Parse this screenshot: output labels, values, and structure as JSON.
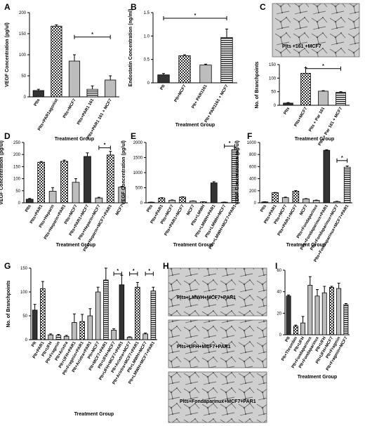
{
  "figure": {
    "panel_letters": [
      "A",
      "B",
      "C",
      "D",
      "E",
      "F",
      "G",
      "H",
      "I"
    ],
    "micrographs": [
      {
        "panel": "C",
        "label": "Plts +161 +MCF7"
      },
      {
        "panel": "H",
        "label": "Plts+LMWH+MCF7+PAR1"
      },
      {
        "panel": "H",
        "label": "Plts+UFH+MCF7+PAR1"
      },
      {
        "panel": "H",
        "label": "Plts+Fondaparinux+MCF7+PAR1"
      }
    ]
  },
  "chart_data": [
    {
      "panel": "A",
      "type": "bar",
      "ylabel": "VEGF Concentration (pg/ul)",
      "xlabel": "Treatment Group",
      "ylim": [
        0,
        200
      ],
      "yticks": [
        0,
        50,
        100,
        150,
        200
      ],
      "categories": [
        "Plts",
        "Plts+PAR1agonist",
        "Plts+MCF7",
        "Plts+PAR1 161",
        "Plts+PAR1 161 + MCF7"
      ],
      "values": [
        15,
        168,
        85,
        18,
        40
      ],
      "errors": [
        3,
        3,
        15,
        8,
        10
      ],
      "patterns": [
        "dark",
        "check",
        "gray",
        "hatch",
        "gray"
      ],
      "significance": [
        {
          "from": 2,
          "to": 4,
          "label": "*",
          "y": 142
        }
      ]
    },
    {
      "panel": "B",
      "type": "bar",
      "ylabel": "Endostatin Concentration (ng/ml)",
      "xlabel": "Treatment Group",
      "ylim": [
        0,
        1.5
      ],
      "yticks": [
        0,
        0.5,
        1.0,
        1.5
      ],
      "ytick_labels": [
        "0",
        "0.5",
        "1.0",
        "1.5"
      ],
      "categories": [
        "Plt",
        "Plt+MCF7",
        "Plt+ PAR1161",
        "Plt+ PAR1161 + MCF7"
      ],
      "values": [
        0.17,
        0.58,
        0.38,
        0.97
      ],
      "errors": [
        0.03,
        0.02,
        0.02,
        0.18
      ],
      "patterns": [
        "dark",
        "check",
        "gray",
        "hatch"
      ],
      "significance": [
        {
          "from": 0,
          "to": 3,
          "label": "*",
          "y": 1.38
        }
      ]
    },
    {
      "panel": "C",
      "type": "bar",
      "ylabel": "No. of Branchpoints",
      "xlabel": "Treatment Group",
      "ylim": [
        0,
        150
      ],
      "yticks": [
        0,
        50,
        100,
        150
      ],
      "categories": [
        "Plts",
        "Plts+MCF7",
        "Plts + Par 161",
        "Plts + Par 161 + MCF7"
      ],
      "values": [
        8,
        118,
        52,
        48
      ],
      "errors": [
        2,
        20,
        2,
        2
      ],
      "patterns": [
        "dark",
        "check",
        "gray",
        "hatch"
      ],
      "significance": [
        {
          "from": 1,
          "to": 3,
          "label": "*",
          "y": 135
        }
      ]
    },
    {
      "panel": "D",
      "type": "bar",
      "ylabel": "VEGF Concentration (pg/ul)",
      "xlabel": "Treatment Group",
      "ylim": [
        0,
        250
      ],
      "yticks": [
        0,
        50,
        100,
        150,
        200,
        250
      ],
      "categories": [
        "Plts",
        "Plts+PAR1",
        "Plts+Heparin",
        "Plts+Heparin+PAR1",
        "Plts+MCF7",
        "Plts+PAR1+MCF7",
        "Plts+Heparin+MCF7",
        "Plts+Heparin+MCF7+PAR1",
        "MCF7"
      ],
      "values": [
        15,
        168,
        48,
        172,
        85,
        192,
        20,
        198,
        65
      ],
      "errors": [
        3,
        3,
        15,
        5,
        15,
        15,
        3,
        15,
        3
      ],
      "patterns": [
        "dark",
        "check",
        "gray",
        "check",
        "gray",
        "dark",
        "gray",
        "check",
        "gray"
      ],
      "significance": [
        {
          "from": 6,
          "to": 7,
          "label": "*",
          "y": 228
        }
      ]
    },
    {
      "panel": "E",
      "type": "bar",
      "ylabel": "VEGF Concentration (pg/ul)",
      "xlabel": "Treatment Group",
      "ylim": [
        0,
        2000
      ],
      "yticks": [
        0,
        500,
        1000,
        1500,
        2000
      ],
      "categories": [
        "Plts",
        "Plts+PAR1",
        "Plts+MCF7",
        "Plts+PAR1+MCF7",
        "MCF7",
        "Plts+LMWH",
        "Plts+LMWH+PAR1",
        "Plts+LMWH+MCF7",
        "Plts+LMWH+MCF7+PAR1"
      ],
      "values": [
        20,
        160,
        85,
        190,
        60,
        30,
        660,
        20,
        1760
      ],
      "errors": [
        3,
        10,
        10,
        10,
        5,
        5,
        40,
        5,
        60
      ],
      "patterns": [
        "gray",
        "check",
        "gray",
        "check",
        "gray",
        "check",
        "dark",
        "gray",
        "hatch"
      ],
      "significance": [
        {
          "from": 7,
          "to": 8,
          "label": "*",
          "y": 1880
        }
      ]
    },
    {
      "panel": "F",
      "type": "bar",
      "ylabel": "VEGF Concentration (pg/ul)",
      "xlabel": "Treatment Group",
      "ylim": [
        0,
        1000
      ],
      "yticks": [
        0,
        200,
        400,
        600,
        800,
        1000
      ],
      "categories": [
        "Plts",
        "Plts+PAR1",
        "Plts+MCF7",
        "Plts+PAR1+MCF7",
        "MCF7",
        "Plts+Fondaparinux",
        "Plts+Fondaparinux+PAR1",
        "Plts+Fondaparinux+MCF7",
        "Plts+Fondaparinux+MCF7+PAR1"
      ],
      "values": [
        15,
        168,
        85,
        192,
        65,
        40,
        870,
        20,
        590
      ],
      "errors": [
        3,
        3,
        10,
        10,
        5,
        5,
        10,
        5,
        20
      ],
      "patterns": [
        "dark",
        "check",
        "gray",
        "check",
        "gray",
        "gray",
        "dark",
        "gray",
        "hatch"
      ],
      "significance": [
        {
          "from": 7,
          "to": 8,
          "label": "*",
          "y": 700
        }
      ]
    },
    {
      "panel": "G",
      "type": "bar",
      "ylabel": "No. of Branchpoints",
      "xlabel": "Treatment Group",
      "ylim": [
        0,
        150
      ],
      "yticks": [
        0,
        50,
        100,
        150
      ],
      "categories": [
        "Plt",
        "Plt+PAR1",
        "Plt+UFH",
        "Plt+Fragmin",
        "Plt+Arixtra",
        "Plt+UFH+PAR1",
        "Plt+Fragmin+PAR1",
        "Plt+Arixtra+PAR1",
        "Plt+MCF7",
        "Plt+MCF7+PAR1",
        "Plt+UFH+MCF7",
        "Plt+UFH+MCF7+PAR1",
        "Plt+Arixtra+MCF7",
        "Plt+Arixtra+MCF7+PAR1",
        "Plt+LMWH+MCF7",
        "Plt+LMWH+MCF7+PAR1"
      ],
      "values": [
        62,
        107,
        10,
        9,
        7,
        36,
        38,
        50,
        100,
        125,
        20,
        115,
        5,
        110,
        12,
        102
      ],
      "errors": [
        12,
        15,
        2,
        2,
        2,
        18,
        15,
        15,
        10,
        25,
        3,
        20,
        1,
        10,
        2,
        8
      ],
      "patterns": [
        "dark",
        "check",
        "gray",
        "hatch",
        "gray",
        "gray",
        "check",
        "gray",
        "gray",
        "hatch",
        "gray",
        "dark",
        "gray",
        "check",
        "gray",
        "hatch"
      ],
      "significance": [
        {
          "from": 10,
          "to": 11,
          "label": "*",
          "y": 138
        },
        {
          "from": 12,
          "to": 13,
          "label": "*",
          "y": 138
        },
        {
          "from": 14,
          "to": 15,
          "label": "*",
          "y": 138
        }
      ]
    },
    {
      "panel": "I",
      "type": "bar",
      "ylabel": "% SPAN12",
      "xlabel": "Treatment Group",
      "ylim": [
        0,
        60
      ],
      "yticks": [
        0,
        20,
        40,
        60
      ],
      "categories": [
        "Plt",
        "Plt+Thrombin",
        "Plt+UFH",
        "Plt+Fondaparinux",
        "Plt+Fondaparinux",
        "Plt+UFH",
        "Plt+UFH+MCF7",
        "Plt+Fragmin",
        "Plt+Fragmin+MCF7"
      ],
      "values": [
        36,
        8,
        11,
        46,
        36,
        39,
        44,
        43,
        28
      ],
      "errors": [
        1,
        1,
        6,
        8,
        6,
        6,
        1,
        5,
        1
      ],
      "patterns": [
        "dark",
        "check",
        "gray",
        "gray",
        "gray",
        "gray",
        "check",
        "gray",
        "hatch"
      ],
      "significance": []
    }
  ]
}
